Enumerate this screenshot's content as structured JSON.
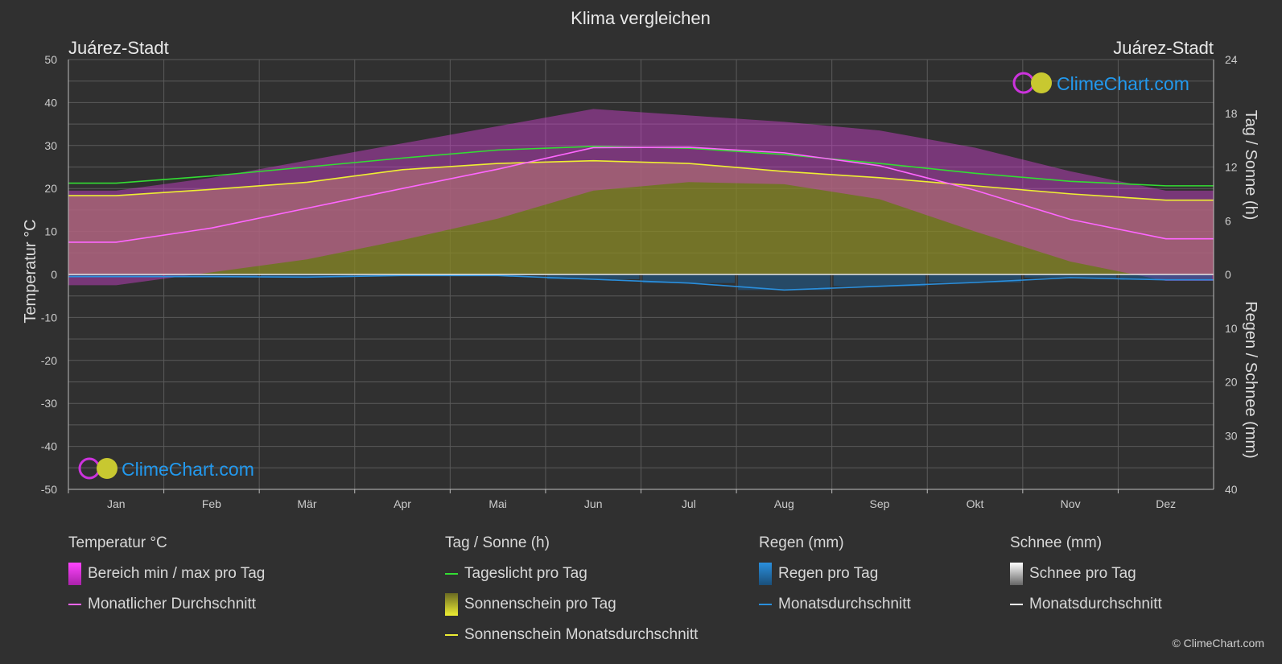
{
  "title": "Klima vergleichen",
  "location_left": "Juárez-Stadt",
  "location_right": "Juárez-Stadt",
  "watermark": "ClimeChart.com",
  "copyright": "© ClimeChart.com",
  "colors": {
    "background": "#303030",
    "temp_range": "#e040e0",
    "temp_avg": "#ff66ff",
    "daylight": "#33dd33",
    "sunshine_fill": "#b8b830",
    "sunshine_avg": "#eeee33",
    "rain": "#2a8fdd",
    "snow": "#bbbbbb",
    "brand": "#2299ee"
  },
  "legend": {
    "temperature": {
      "title": "Temperatur °C",
      "items": [
        {
          "label": "Bereich min / max pro Tag",
          "swatch": "box",
          "color": "#e040e0"
        },
        {
          "label": "Monatlicher Durchschnitt",
          "swatch": "line",
          "color": "#ff66ff"
        }
      ]
    },
    "sun": {
      "title": "Tag / Sonne (h)",
      "items": [
        {
          "label": "Tageslicht pro Tag",
          "swatch": "line",
          "color": "#33dd33"
        },
        {
          "label": "Sonnenschein pro Tag",
          "swatch": "box",
          "color": "#cccc33"
        },
        {
          "label": "Sonnenschein Monatsdurchschnitt",
          "swatch": "line",
          "color": "#eeee33"
        }
      ]
    },
    "rain": {
      "title": "Regen (mm)",
      "items": [
        {
          "label": "Regen pro Tag",
          "swatch": "box",
          "color": "#2a8fdd"
        },
        {
          "label": "Monatsdurchschnitt",
          "swatch": "line",
          "color": "#2a8fdd"
        }
      ]
    },
    "snow": {
      "title": "Schnee (mm)",
      "items": [
        {
          "label": "Schnee pro Tag",
          "swatch": "box",
          "color": "#dddddd"
        },
        {
          "label": "Monatsdurchschnitt",
          "swatch": "line",
          "color": "#ffffff"
        }
      ]
    }
  },
  "chart_data": {
    "type": "line",
    "title": "Klima vergleichen",
    "categories": [
      "Jan",
      "Feb",
      "Mär",
      "Apr",
      "Mai",
      "Jun",
      "Jul",
      "Aug",
      "Sep",
      "Okt",
      "Nov",
      "Dez"
    ],
    "y_left": {
      "label": "Temperatur °C",
      "range": [
        -50,
        50
      ],
      "ticks": [
        50,
        40,
        30,
        20,
        10,
        0,
        -10,
        -20,
        -30,
        -40,
        -50
      ]
    },
    "y_right_top": {
      "label": "Tag / Sonne (h)",
      "range": [
        0,
        24
      ],
      "ticks": [
        24,
        18,
        12,
        6,
        0
      ]
    },
    "y_right_bottom": {
      "label": "Regen / Schnee (mm)",
      "range": [
        0,
        40
      ],
      "ticks": [
        10,
        20,
        30,
        40
      ]
    },
    "grid": true,
    "series": [
      {
        "name": "Monatlicher Durchschnitt",
        "axis": "temperature",
        "values": [
          7.5,
          10.8,
          15.4,
          20.0,
          24.5,
          29.5,
          29.6,
          28.3,
          25.3,
          19.6,
          12.8,
          8.3
        ]
      },
      {
        "name": "Tageslicht pro Tag",
        "axis": "sun",
        "values": [
          10.2,
          11.0,
          12.0,
          13.0,
          13.9,
          14.3,
          14.1,
          13.4,
          12.4,
          11.3,
          10.4,
          9.9
        ]
      },
      {
        "name": "Sonnenschein Monatsdurchschnitt",
        "axis": "sun",
        "values": [
          8.8,
          9.5,
          10.3,
          11.7,
          12.4,
          12.7,
          12.4,
          11.5,
          10.8,
          9.9,
          9.0,
          8.3
        ]
      },
      {
        "name": "Regen Monatsdurchschnitt",
        "axis": "rain",
        "values": [
          0.4,
          0.4,
          0.5,
          0.2,
          0.2,
          0.9,
          1.6,
          2.9,
          2.2,
          1.5,
          0.6,
          1.0
        ]
      },
      {
        "name": "Tagestemperatur max",
        "axis": "temperature",
        "values": [
          19.5,
          22.5,
          26.5,
          30.5,
          34.5,
          38.5,
          37.0,
          35.5,
          33.5,
          29.5,
          24.0,
          19.5
        ]
      },
      {
        "name": "Tagestemperatur min",
        "axis": "temperature",
        "values": [
          -2.5,
          0.5,
          3.5,
          8.0,
          13.0,
          19.5,
          21.5,
          21.0,
          17.5,
          10.0,
          3.0,
          -1.5
        ]
      }
    ]
  }
}
